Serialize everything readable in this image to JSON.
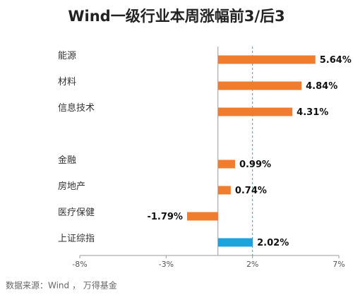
{
  "chart_data": {
    "type": "hbar",
    "title": "Wind一级行业本周涨幅前3/后3",
    "categories": [
      "能源",
      "材料",
      "信息技术",
      null,
      "金融",
      "房地产",
      "医疗保健",
      "上证综指"
    ],
    "values": [
      5.64,
      4.84,
      4.31,
      null,
      0.99,
      0.74,
      -1.79,
      2.02
    ],
    "value_labels": [
      "5.64%",
      "4.84%",
      "4.31%",
      null,
      "0.99%",
      "0.74%",
      "-1.79%",
      "2.02%"
    ],
    "colors": [
      "#f07c2e",
      "#f07c2e",
      "#f07c2e",
      null,
      "#f07c2e",
      "#f07c2e",
      "#f07c2e",
      "#1aa3dc"
    ],
    "xlim": [
      -8,
      7
    ],
    "xticks": [
      {
        "value": -8,
        "label": "-8%"
      },
      {
        "value": -3,
        "label": "-3%"
      },
      {
        "value": 2,
        "label": "2%"
      },
      {
        "value": 7,
        "label": "7%"
      }
    ],
    "reference_line": 2,
    "source": "数据来源：Wind ， 万得基金"
  }
}
